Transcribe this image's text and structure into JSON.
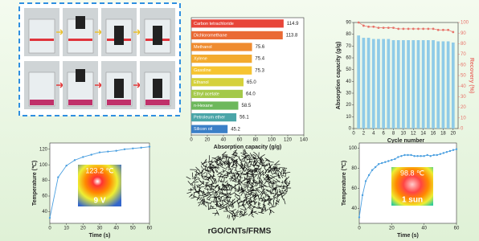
{
  "caption": "rGO/CNTs/FRMS",
  "chart_data": [
    {
      "type": "hbar",
      "xlabel": "Absorption capacity (g/g)",
      "categories": [
        "Carbon tetrachloride",
        "Dichloromethane",
        "Methanol",
        "Xylene",
        "Gasoline",
        "Ethanol",
        "Ethyl acetate",
        "n-Hexane",
        "Petroleum ether",
        "Silicon oil"
      ],
      "values": [
        114.9,
        113.8,
        75.6,
        75.4,
        75.3,
        65.0,
        64.0,
        58.5,
        56.1,
        45.2
      ],
      "value_labels": [
        "114.9",
        "113.8",
        "75.6",
        "75.4",
        "75.3",
        "65.0",
        "64.0",
        "58.5",
        "56.1",
        "45.2"
      ],
      "colors": [
        "#e8463a",
        "#ea6a35",
        "#ef8c30",
        "#f3aa2e",
        "#f6c431",
        "#d5d13a",
        "#a4c94a",
        "#6db85c",
        "#4aa5a8",
        "#3b7fc7"
      ],
      "xlim": [
        0,
        140
      ],
      "xticks": [
        0,
        20,
        40,
        60,
        80,
        100,
        120,
        140
      ]
    },
    {
      "type": "combo",
      "xlabel": "Cycle number",
      "ylabel": "Absorption capacity (g/g)",
      "y2label": "Recovery (%)",
      "x": [
        1,
        2,
        3,
        4,
        5,
        6,
        7,
        8,
        9,
        10,
        11,
        12,
        13,
        14,
        15,
        16,
        17,
        18,
        19,
        20
      ],
      "series": [
        {
          "type": "bar",
          "color": "#8fcbe8",
          "values": [
            79,
            77,
            77,
            76,
            76,
            76,
            76,
            75,
            75,
            75,
            75,
            75,
            75,
            75,
            75,
            75,
            74,
            74,
            74,
            73
          ]
        },
        {
          "type": "line",
          "axis": "y2",
          "color": "#e8736a",
          "values": [
            100,
            97,
            96,
            96,
            95,
            95,
            95,
            95,
            94,
            94,
            94,
            94,
            94,
            94,
            94,
            94,
            93,
            93,
            93,
            91
          ]
        }
      ],
      "xlim": [
        0,
        21
      ],
      "xticks": [
        0,
        2,
        4,
        6,
        8,
        10,
        12,
        14,
        16,
        18,
        20
      ],
      "ylim": [
        0,
        90
      ],
      "yticks": [
        0,
        10,
        20,
        30,
        40,
        50,
        60,
        70,
        80,
        90
      ],
      "y2lim": [
        0,
        100
      ],
      "y2ticks": [
        0,
        10,
        20,
        30,
        40,
        50,
        60,
        70,
        80,
        90,
        100
      ]
    },
    {
      "type": "line",
      "xlabel": "Time (s)",
      "ylabel": "Temperature (℃)",
      "annotations": [
        "123.2 ℃",
        "9 V"
      ],
      "color": "#4a9fe0",
      "x": [
        0,
        5,
        10,
        15,
        20,
        25,
        30,
        35,
        40,
        45,
        50,
        55,
        60
      ],
      "values": [
        32,
        84,
        99,
        106,
        110,
        113,
        116,
        117,
        118,
        120,
        121,
        122,
        123.2
      ],
      "xlim": [
        0,
        60
      ],
      "xticks": [
        0,
        10,
        20,
        30,
        40,
        50,
        60
      ],
      "ylim": [
        25,
        128
      ],
      "yticks": [
        40,
        60,
        80,
        100,
        120
      ]
    },
    {
      "type": "line",
      "xlabel": "Time (s)",
      "ylabel": "Temperature (℃)",
      "annotations": [
        "98.8 ℃",
        "1 sun"
      ],
      "color": "#4a9fe0",
      "x": [
        0,
        2,
        4,
        6,
        8,
        10,
        12,
        14,
        16,
        18,
        20,
        22,
        24,
        26,
        28,
        30,
        32,
        34,
        36,
        38,
        40,
        42,
        44,
        46,
        48,
        50,
        52,
        54,
        56,
        58,
        60
      ],
      "values": [
        31,
        53,
        67,
        73,
        78,
        81,
        84,
        85,
        86,
        87,
        88,
        89,
        91,
        92,
        93,
        93,
        93,
        92,
        92,
        92,
        92,
        93,
        92,
        93,
        93,
        94,
        95,
        96,
        97,
        98,
        98.8
      ],
      "xlim": [
        0,
        60
      ],
      "xticks": [
        0,
        20,
        40,
        60
      ],
      "ylim": [
        25,
        105
      ],
      "yticks": [
        40,
        60,
        80,
        100
      ]
    }
  ]
}
